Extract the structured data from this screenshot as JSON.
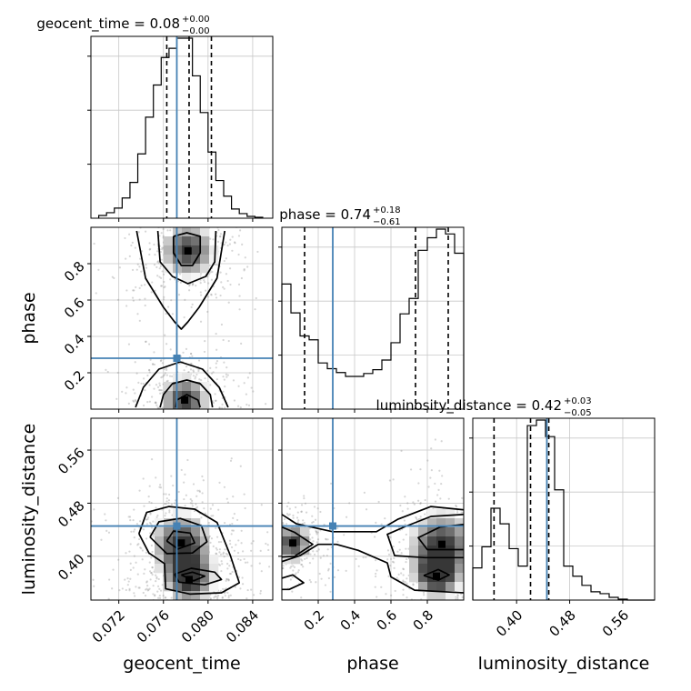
{
  "chart_data": {
    "type": "corner",
    "parameters": [
      "geocent_time",
      "phase",
      "luminosity_distance"
    ],
    "axis_labels": {
      "geocent_time": "geocent_time",
      "phase": "phase",
      "luminosity_distance": "luminosity_distance"
    },
    "ranges": {
      "geocent_time": [
        0.0695,
        0.0858
      ],
      "phase": [
        0.0,
        1.0
      ],
      "luminosity_distance": [
        0.334,
        0.608
      ]
    },
    "ticks": {
      "geocent_time": [
        "0.072",
        "0.076",
        "0.080",
        "0.084"
      ],
      "phase": [
        "0.2",
        "0.4",
        "0.6",
        "0.8"
      ],
      "luminosity_distance": [
        "0.40",
        "0.48",
        "0.56"
      ]
    },
    "truths": {
      "geocent_time": 0.0772,
      "phase": 0.28,
      "luminosity_distance": 0.4456
    },
    "grid": true,
    "diagonal": [
      {
        "parameter": "geocent_time",
        "title": {
          "prefix": "geocent_time = 0.08",
          "plus": "+0.00",
          "minus": "−0.00"
        },
        "quantiles": [
          0.0763,
          0.0783,
          0.0803
        ],
        "bin_edges": [
          0.0702,
          0.0709,
          0.0716,
          0.0723,
          0.073,
          0.0737,
          0.0744,
          0.0751,
          0.0758,
          0.0765,
          0.0772,
          0.0779,
          0.0786,
          0.0793,
          0.08,
          0.0807,
          0.0814,
          0.0821,
          0.0828,
          0.0835,
          0.0842,
          0.0849
        ],
        "counts": [
          3,
          6,
          11,
          22,
          39,
          70,
          110,
          145,
          175,
          185,
          196,
          196,
          155,
          115,
          72,
          41,
          24,
          10,
          5,
          2,
          1
        ]
      },
      {
        "parameter": "phase",
        "title": {
          "prefix": "phase = 0.74",
          "plus": "+0.18",
          "minus": "−0.61"
        },
        "quantiles": [
          0.125,
          0.735,
          0.915
        ],
        "bin_edges": [
          0.0,
          0.05,
          0.1,
          0.15,
          0.2,
          0.25,
          0.3,
          0.35,
          0.4,
          0.45,
          0.5,
          0.55,
          0.6,
          0.65,
          0.7,
          0.75,
          0.8,
          0.85,
          0.9,
          0.95,
          1.0
        ],
        "counts": [
          130,
          100,
          76,
          72,
          48,
          42,
          38,
          34,
          34,
          37,
          41,
          51,
          69,
          99,
          115,
          165,
          178,
          187,
          182,
          162
        ]
      },
      {
        "parameter": "luminosity_distance",
        "title": {
          "prefix": "luminosity_distance = 0.42",
          "plus": "+0.03",
          "minus": "−0.05"
        },
        "quantiles": [
          0.366,
          0.421,
          0.4485
        ],
        "bin_edges": [
          0.334,
          0.3477,
          0.3614,
          0.3751,
          0.3888,
          0.4025,
          0.4162,
          0.4299,
          0.4436,
          0.4573,
          0.471,
          0.4847,
          0.4984,
          0.5121,
          0.5258,
          0.5395,
          0.5532,
          0.5669,
          0.5806,
          0.5943,
          0.608
        ],
        "counts": [
          35,
          58,
          100,
          83,
          56,
          37,
          190,
          196,
          178,
          120,
          37,
          26,
          16,
          9,
          7,
          3,
          1,
          0,
          0,
          0
        ]
      }
    ],
    "pairs": [
      {
        "x": "geocent_time",
        "y": "phase",
        "density_peaks": [
          [
            0.0782,
            0.87,
            0.1
          ],
          [
            0.0779,
            0.05,
            0.09
          ]
        ],
        "contours": [
          [
            [
              0.0736,
              0.98
            ],
            [
              0.0744,
              0.72
            ],
            [
              0.076,
              0.56
            ],
            [
              0.077,
              0.48
            ],
            [
              0.0776,
              0.44
            ],
            [
              0.0782,
              0.48
            ],
            [
              0.0792,
              0.56
            ],
            [
              0.0808,
              0.72
            ],
            [
              0.0815,
              0.98
            ]
          ],
          [
            [
              0.0755,
              0.98
            ],
            [
              0.0757,
              0.81
            ],
            [
              0.0768,
              0.73
            ],
            [
              0.0782,
              0.69
            ],
            [
              0.0798,
              0.73
            ],
            [
              0.0806,
              0.81
            ],
            [
              0.0807,
              0.98
            ]
          ],
          [
            [
              0.0769,
              0.95
            ],
            [
              0.0769,
              0.86
            ],
            [
              0.0776,
              0.79
            ],
            [
              0.0786,
              0.79
            ],
            [
              0.0793,
              0.86
            ],
            [
              0.0793,
              0.95
            ],
            [
              0.0781,
              0.97
            ],
            [
              0.0769,
              0.95
            ]
          ],
          [
            [
              0.0735,
              0.01
            ],
            [
              0.0742,
              0.12
            ],
            [
              0.0756,
              0.22
            ],
            [
              0.0775,
              0.26
            ],
            [
              0.0795,
              0.22
            ],
            [
              0.081,
              0.12
            ],
            [
              0.0818,
              0.01
            ]
          ],
          [
            [
              0.0757,
              0.01
            ],
            [
              0.076,
              0.08
            ],
            [
              0.0768,
              0.14
            ],
            [
              0.0781,
              0.16
            ],
            [
              0.0793,
              0.14
            ],
            [
              0.0802,
              0.08
            ],
            [
              0.0804,
              0.01
            ]
          ],
          [
            [
              0.0771,
              0.01
            ],
            [
              0.0772,
              0.05
            ],
            [
              0.0781,
              0.08
            ],
            [
              0.0791,
              0.05
            ],
            [
              0.0793,
              0.01
            ]
          ]
        ]
      },
      {
        "x": "geocent_time",
        "y": "luminosity_distance",
        "density_peaks": [
          [
            0.0776,
            0.42,
            0.11
          ],
          [
            0.0783,
            0.365,
            0.09
          ]
        ],
        "contours": [
          [
            [
              0.0738,
              0.434
            ],
            [
              0.0745,
              0.466
            ],
            [
              0.0765,
              0.475
            ],
            [
              0.0788,
              0.471
            ],
            [
              0.0808,
              0.451
            ],
            [
              0.082,
              0.401
            ],
            [
              0.0828,
              0.36
            ],
            [
              0.0812,
              0.345
            ],
            [
              0.0784,
              0.343
            ],
            [
              0.0762,
              0.351
            ],
            [
              0.0761,
              0.389
            ],
            [
              0.0747,
              0.405
            ],
            [
              0.0738,
              0.434
            ]
          ],
          [
            [
              0.0748,
              0.429
            ],
            [
              0.0756,
              0.452
            ],
            [
              0.0775,
              0.457
            ],
            [
              0.0794,
              0.446
            ],
            [
              0.0799,
              0.422
            ],
            [
              0.0786,
              0.405
            ],
            [
              0.0763,
              0.404
            ],
            [
              0.0748,
              0.429
            ]
          ],
          [
            [
              0.0763,
              0.423
            ],
            [
              0.0769,
              0.438
            ],
            [
              0.0784,
              0.435
            ],
            [
              0.0788,
              0.42
            ],
            [
              0.0773,
              0.411
            ],
            [
              0.0763,
              0.423
            ]
          ],
          [
            [
              0.077,
              0.373
            ],
            [
              0.0785,
              0.382
            ],
            [
              0.0806,
              0.376
            ],
            [
              0.0812,
              0.365
            ],
            [
              0.0797,
              0.357
            ],
            [
              0.0774,
              0.361
            ],
            [
              0.077,
              0.373
            ]
          ],
          [
            [
              0.0776,
              0.372
            ],
            [
              0.0786,
              0.376
            ],
            [
              0.0797,
              0.37
            ],
            [
              0.0787,
              0.363
            ],
            [
              0.0776,
              0.372
            ]
          ]
        ]
      },
      {
        "x": "phase",
        "y": "luminosity_distance",
        "density_peaks": [
          [
            0.06,
            0.42,
            0.07
          ],
          [
            0.88,
            0.418,
            0.12
          ],
          [
            0.85,
            0.37,
            0.08
          ]
        ],
        "contours": [
          [
            [
              0.0,
              0.463
            ],
            [
              0.08,
              0.449
            ],
            [
              0.28,
              0.437
            ],
            [
              0.52,
              0.437
            ],
            [
              0.64,
              0.456
            ],
            [
              0.82,
              0.475
            ],
            [
              1.0,
              0.47
            ]
          ],
          [
            [
              0.0,
              0.392
            ],
            [
              0.1,
              0.401
            ],
            [
              0.2,
              0.418
            ],
            [
              0.3,
              0.418
            ],
            [
              0.42,
              0.409
            ],
            [
              0.58,
              0.39
            ],
            [
              0.6,
              0.369
            ],
            [
              0.73,
              0.349
            ],
            [
              1.0,
              0.345
            ]
          ],
          [
            [
              0.0,
              0.444
            ],
            [
              0.07,
              0.436
            ],
            [
              0.17,
              0.418
            ],
            [
              0.07,
              0.4
            ],
            [
              0.0,
              0.399
            ]
          ],
          [
            [
              0.0,
              0.367
            ],
            [
              0.06,
              0.372
            ],
            [
              0.12,
              0.36
            ],
            [
              0.04,
              0.35
            ],
            [
              0.0,
              0.35
            ]
          ],
          [
            [
              1.0,
              0.463
            ],
            [
              0.82,
              0.46
            ],
            [
              0.68,
              0.445
            ],
            [
              0.58,
              0.433
            ],
            [
              0.62,
              0.401
            ],
            [
              0.79,
              0.398
            ],
            [
              1.0,
              0.398
            ]
          ],
          [
            [
              1.0,
              0.448
            ],
            [
              0.87,
              0.444
            ],
            [
              0.75,
              0.428
            ],
            [
              0.8,
              0.41
            ],
            [
              1.0,
              0.41
            ]
          ],
          [
            [
              0.78,
              0.371
            ],
            [
              0.86,
              0.38
            ],
            [
              0.92,
              0.372
            ],
            [
              0.86,
              0.364
            ],
            [
              0.78,
              0.371
            ]
          ]
        ]
      }
    ]
  }
}
